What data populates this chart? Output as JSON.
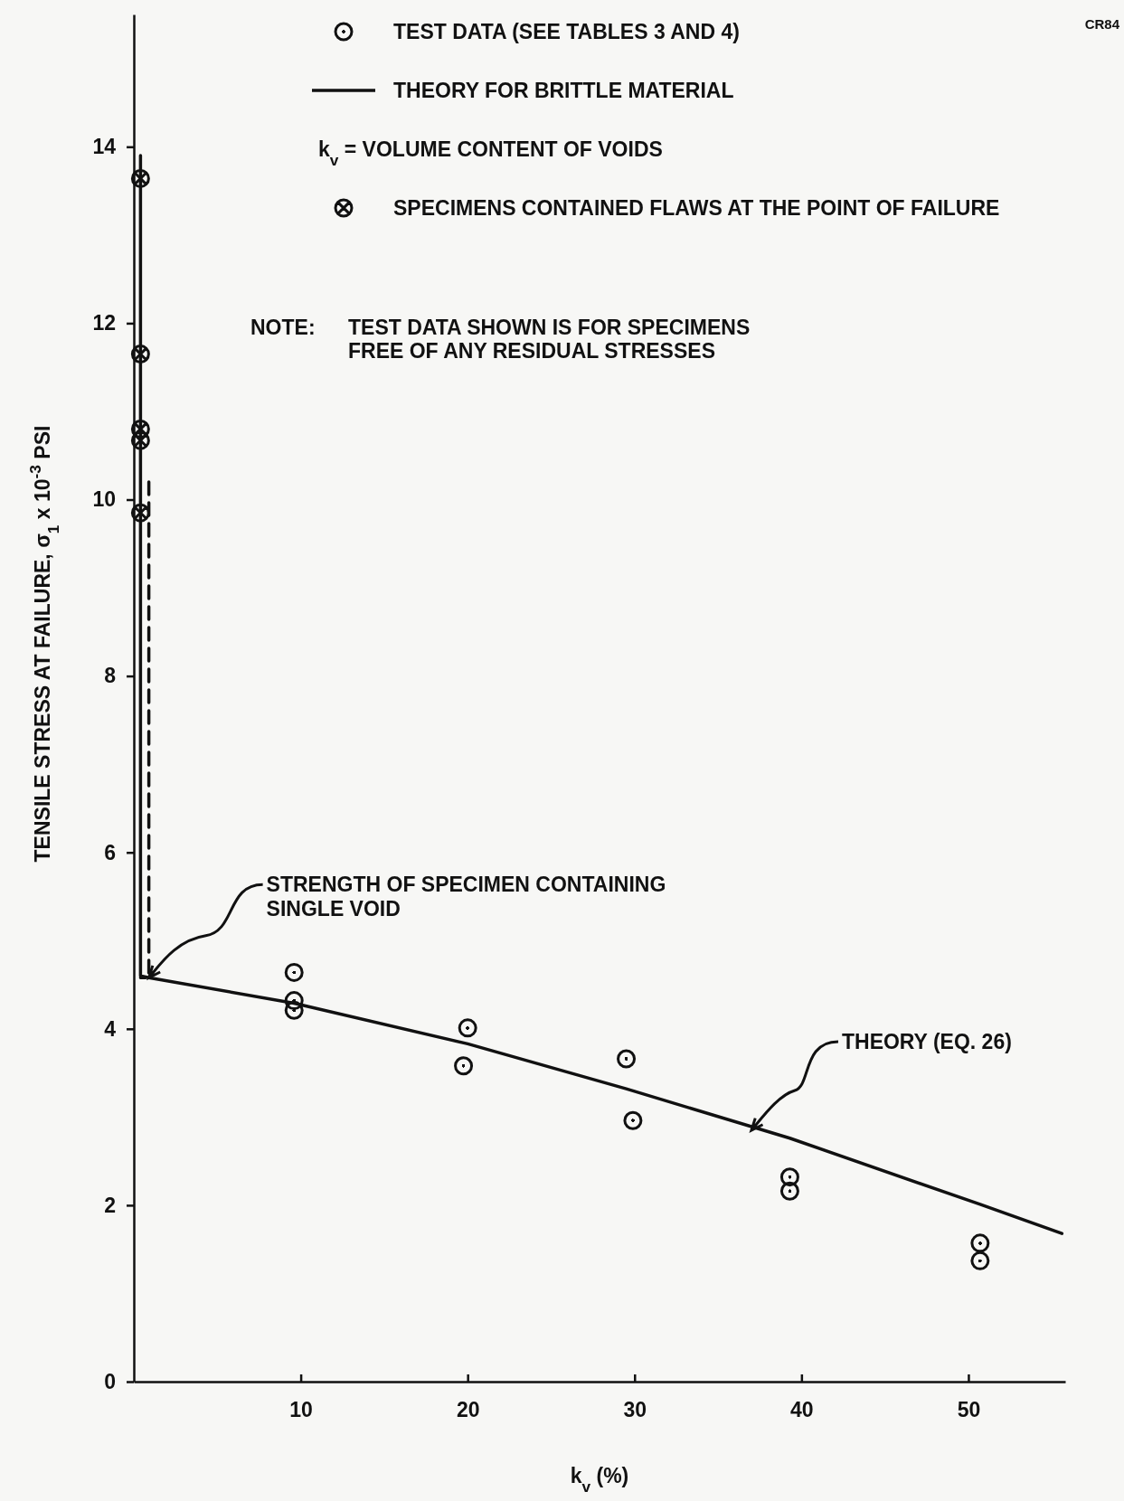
{
  "chart_data": {
    "type": "scatter",
    "xlabel": "k$_{v}$ (%)",
    "ylabel": "TENSILE STRESS AT FAILURE, σ$_{1}$ x 10$^{-3}$ PSI",
    "xlim": [
      0,
      55.8
    ],
    "ylim": [
      0,
      15.5
    ],
    "xticks": [
      10,
      20,
      30,
      40,
      50
    ],
    "yticks": [
      0,
      2,
      4,
      6,
      8,
      10,
      12,
      14
    ],
    "grid": false,
    "legend": "top",
    "series": [
      {
        "name": "TEST DATA (SEE TABLES 3 AND 4)",
        "type": "scatter",
        "marker": "circle",
        "color": "#111111",
        "x": [
          9.6,
          9.6,
          9.6,
          20.0,
          19.75,
          29.5,
          29.9,
          39.3,
          39.3,
          50.7,
          50.7
        ],
        "values": [
          4.64,
          4.32,
          4.21,
          4.01,
          3.58,
          3.66,
          2.96,
          2.32,
          2.16,
          1.57,
          1.37
        ]
      },
      {
        "name": "THEORY FOR BRITTLE MATERIAL",
        "type": "line",
        "marker": "none",
        "line_style": "solid",
        "color": "#111111",
        "x": [
          0.4,
          0.4,
          0.9,
          9.6,
          20,
          29.5,
          39.3,
          50.7,
          55.6
        ],
        "values": [
          13.9,
          4.6,
          4.58,
          4.29,
          3.83,
          3.32,
          2.76,
          2.01,
          1.68
        ]
      },
      {
        "type": "line",
        "marker": "none",
        "line_style": "dashed",
        "color": "#111111",
        "x": [
          0.9,
          0.9,
          0.4
        ],
        "values": [
          10.2,
          4.58,
          4.58
        ]
      },
      {
        "name": "SPECIMENS CONTAINED FLAWS AT THE POINT OF FAILURE",
        "type": "scatter",
        "marker": "cross",
        "color": "#111111",
        "x": [
          0.4,
          0.4,
          0.4,
          0.4,
          0.4
        ],
        "values": [
          13.64,
          11.65,
          10.8,
          10.67,
          9.85
        ]
      }
    ],
    "annotations": [
      "k$_{v}$ = VOLUME CONTENT OF VOIDS",
      "NOTE:  TEST DATA SHOWN IS FOR SPECIMENS FREE OF ANY RESIDUAL STRESSES",
      "CR84",
      {
        "text": "STRENGTH OF SPECIMEN CONTAINING SINGLE VOID",
        "x": 0.9,
        "y": 4.58
      },
      {
        "text": "THEORY (EQ. 26)",
        "x": 37.0,
        "y": 2.85
      }
    ]
  }
}
